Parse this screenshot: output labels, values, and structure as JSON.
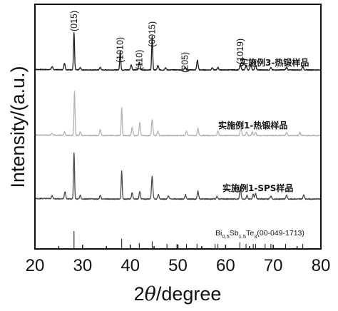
{
  "chart_data": {
    "type": "line",
    "title": "",
    "xlabel_prefix": "2",
    "xlabel_symbol": "θ",
    "xlabel_suffix": "/degree",
    "ylabel": "Intensity/(a.u.)",
    "xlim": [
      20,
      80
    ],
    "x_ticks": [
      "20",
      "30",
      "40",
      "50",
      "60",
      "70",
      "80"
    ],
    "y_ticks_shown": false,
    "grid": false,
    "legend": "none",
    "colors": {
      "series_1": "#1c1c1c",
      "series_2": "#b4b4b4",
      "series_3": "#4a4a4a",
      "reference": "#222222"
    },
    "series": [
      {
        "name": "实施例3-热锻样品",
        "peaks": [
          [
            23.6,
            0.08
          ],
          [
            26.2,
            0.18
          ],
          [
            28.2,
            1.0
          ],
          [
            29.5,
            0.06
          ],
          [
            33.7,
            0.07
          ],
          [
            37.9,
            0.52
          ],
          [
            40.2,
            0.14
          ],
          [
            41.9,
            0.22
          ],
          [
            44.6,
            0.9
          ],
          [
            45.8,
            0.12
          ],
          [
            47.4,
            0.06
          ],
          [
            51.5,
            0.07
          ],
          [
            54.1,
            0.26
          ],
          [
            57.2,
            0.06
          ],
          [
            58.4,
            0.07
          ],
          [
            63.1,
            0.15
          ],
          [
            64.3,
            0.11
          ],
          [
            65.3,
            0.16
          ],
          [
            66.3,
            0.12
          ],
          [
            69.5,
            0.06
          ],
          [
            72.8,
            0.07
          ],
          [
            76.2,
            0.09
          ]
        ]
      },
      {
        "name": "实施例1-热锻样品",
        "peaks": [
          [
            23.6,
            0.05
          ],
          [
            26.2,
            0.08
          ],
          [
            28.3,
            1.0
          ],
          [
            29.5,
            0.08
          ],
          [
            33.7,
            0.14
          ],
          [
            38.2,
            0.62
          ],
          [
            40.4,
            0.18
          ],
          [
            42.0,
            0.3
          ],
          [
            44.6,
            0.36
          ],
          [
            45.8,
            0.1
          ],
          [
            51.8,
            0.1
          ],
          [
            54.2,
            0.16
          ],
          [
            58.4,
            0.11
          ],
          [
            63.2,
            0.2
          ],
          [
            64.4,
            0.08
          ],
          [
            65.6,
            0.08
          ],
          [
            66.3,
            0.07
          ],
          [
            72.8,
            0.07
          ],
          [
            75.6,
            0.07
          ]
        ]
      },
      {
        "name": "实施例1-SPS样品",
        "peaks": [
          [
            23.6,
            0.06
          ],
          [
            26.3,
            0.16
          ],
          [
            28.2,
            1.0
          ],
          [
            29.5,
            0.08
          ],
          [
            33.7,
            0.08
          ],
          [
            38.2,
            0.6
          ],
          [
            40.4,
            0.14
          ],
          [
            42.0,
            0.16
          ],
          [
            44.6,
            0.48
          ],
          [
            45.9,
            0.1
          ],
          [
            48.0,
            0.07
          ],
          [
            51.6,
            0.09
          ],
          [
            54.2,
            0.17
          ],
          [
            58.2,
            0.06
          ],
          [
            63.1,
            0.24
          ],
          [
            64.5,
            0.08
          ],
          [
            65.8,
            0.1
          ],
          [
            66.3,
            0.12
          ],
          [
            69.5,
            0.06
          ],
          [
            72.8,
            0.08
          ],
          [
            76.4,
            0.09
          ]
        ]
      }
    ],
    "peak_labels": [
      {
        "text": "(015)",
        "x": 28.2
      },
      {
        "text": "(1010)",
        "x": 37.9
      },
      {
        "text": "(110)",
        "x": 41.9
      },
      {
        "text": "(0015)",
        "x": 44.6
      },
      {
        "text": "(205)",
        "x": 51.5
      },
      {
        "text": "(1019)",
        "x": 63.1
      }
    ],
    "reference": {
      "label": {
        "el1": "Bi",
        "sub1": "0.5",
        "el2": "Sb",
        "sub2": "1.5",
        "el3": "Te",
        "sub3": "3",
        "code": "(00-049-1713)"
      },
      "lines": [
        [
          28.2,
          1.0
        ],
        [
          38.2,
          0.55
        ],
        [
          41.9,
          0.3
        ],
        [
          44.6,
          0.4
        ],
        [
          47.7,
          0.25
        ],
        [
          49.8,
          0.25
        ],
        [
          51.8,
          0.25
        ],
        [
          54.0,
          0.25
        ],
        [
          57.8,
          0.25
        ],
        [
          58.4,
          0.25
        ],
        [
          63.0,
          0.35
        ],
        [
          64.3,
          0.25
        ],
        [
          65.8,
          0.25
        ],
        [
          66.3,
          0.25
        ],
        [
          68.3,
          0.25
        ],
        [
          69.5,
          0.25
        ],
        [
          72.6,
          0.25
        ],
        [
          76.2,
          0.25
        ]
      ]
    }
  }
}
